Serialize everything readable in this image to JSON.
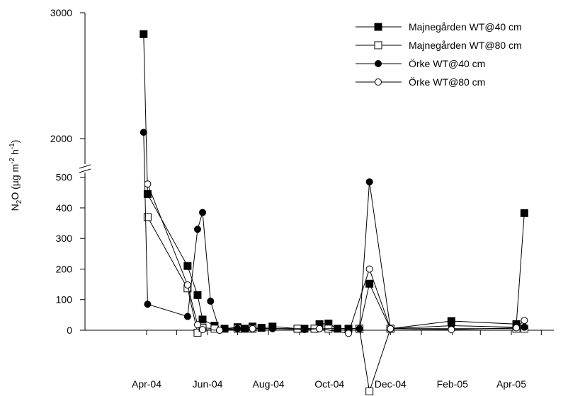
{
  "chart_data": {
    "type": "line",
    "ylabel": {
      "base": "N",
      "sub1": "2",
      "mid": "O (µg m",
      "sup1": "-2",
      "mid2": " h",
      "sup2": "-1",
      "end": ")"
    },
    "x_ticks": [
      "Apr-04",
      "Jun-04",
      "Aug-04",
      "Oct-04",
      "Dec-04",
      "Feb-05",
      "Apr-05"
    ],
    "y_ticks_lower": [
      0,
      100,
      200,
      300,
      400,
      500
    ],
    "y_ticks_upper": [
      2000,
      3000
    ],
    "y_break": {
      "lower_range": [
        0,
        500
      ],
      "upper_range": [
        2000,
        3000
      ]
    },
    "legend_position": "top-right",
    "series": [
      {
        "name": "Majnegården WT@40 cm",
        "marker": "square-filled",
        "points": [
          [
            "2004-03-29",
            2830
          ],
          [
            "2004-04-02",
            445
          ],
          [
            "2004-05-12",
            210
          ],
          [
            "2004-05-22",
            115
          ],
          [
            "2004-05-27",
            35
          ],
          [
            "2004-06-08",
            15
          ],
          [
            "2004-06-18",
            5
          ],
          [
            "2004-07-01",
            10
          ],
          [
            "2004-07-08",
            5
          ],
          [
            "2004-07-16",
            12
          ],
          [
            "2004-07-25",
            8
          ],
          [
            "2004-08-05",
            12
          ],
          [
            "2004-08-30",
            5
          ],
          [
            "2004-09-06",
            5
          ],
          [
            "2004-09-16",
            5
          ],
          [
            "2004-09-21",
            20
          ],
          [
            "2004-09-30",
            22
          ],
          [
            "2004-10-09",
            5
          ],
          [
            "2004-10-20",
            5
          ],
          [
            "2004-10-31",
            5
          ],
          [
            "2004-11-10",
            152
          ],
          [
            "2004-12-01",
            5
          ],
          [
            "2005-01-31",
            30
          ],
          [
            "2005-04-06",
            20
          ],
          [
            "2005-04-14",
            383
          ]
        ]
      },
      {
        "name": "Majnegården WT@80 cm",
        "marker": "square-open",
        "points": [
          [
            "2004-04-02",
            370
          ],
          [
            "2004-05-12",
            137
          ],
          [
            "2004-05-22",
            -8
          ],
          [
            "2004-05-27",
            8
          ],
          [
            "2004-06-08",
            5
          ],
          [
            "2004-07-01",
            5
          ],
          [
            "2004-07-16",
            5
          ],
          [
            "2004-08-30",
            5
          ],
          [
            "2004-09-16",
            5
          ],
          [
            "2004-09-30",
            5
          ],
          [
            "2004-10-31",
            5
          ],
          [
            "2004-11-10",
            -200
          ],
          [
            "2004-12-01",
            5
          ],
          [
            "2005-04-06",
            5
          ],
          [
            "2005-04-14",
            5
          ]
        ]
      },
      {
        "name": "Örke WT@40 cm",
        "marker": "circle-filled",
        "points": [
          [
            "2004-03-29",
            2050
          ],
          [
            "2004-04-02",
            85
          ],
          [
            "2004-05-12",
            45
          ],
          [
            "2004-05-22",
            330
          ],
          [
            "2004-05-27",
            385
          ],
          [
            "2004-06-04",
            95
          ],
          [
            "2004-06-13",
            0
          ],
          [
            "2004-07-01",
            5
          ],
          [
            "2004-07-16",
            5
          ],
          [
            "2004-08-05",
            5
          ],
          [
            "2004-09-06",
            2
          ],
          [
            "2004-09-21",
            5
          ],
          [
            "2004-10-09",
            5
          ],
          [
            "2004-10-31",
            5
          ],
          [
            "2004-11-10",
            485
          ],
          [
            "2004-12-01",
            5
          ],
          [
            "2005-01-31",
            15
          ],
          [
            "2005-04-06",
            10
          ],
          [
            "2005-04-14",
            10
          ]
        ]
      },
      {
        "name": "Örke WT@80 cm",
        "marker": "circle-open",
        "points": [
          [
            "2004-04-02",
            478
          ],
          [
            "2004-05-12",
            148
          ],
          [
            "2004-05-22",
            18
          ],
          [
            "2004-05-27",
            2
          ],
          [
            "2004-06-13",
            0
          ],
          [
            "2004-07-16",
            5
          ],
          [
            "2004-09-21",
            5
          ],
          [
            "2004-10-20",
            -10
          ],
          [
            "2004-11-10",
            200
          ],
          [
            "2004-12-01",
            5
          ],
          [
            "2005-01-31",
            2
          ],
          [
            "2005-04-06",
            8
          ],
          [
            "2005-04-14",
            32
          ]
        ]
      }
    ]
  }
}
